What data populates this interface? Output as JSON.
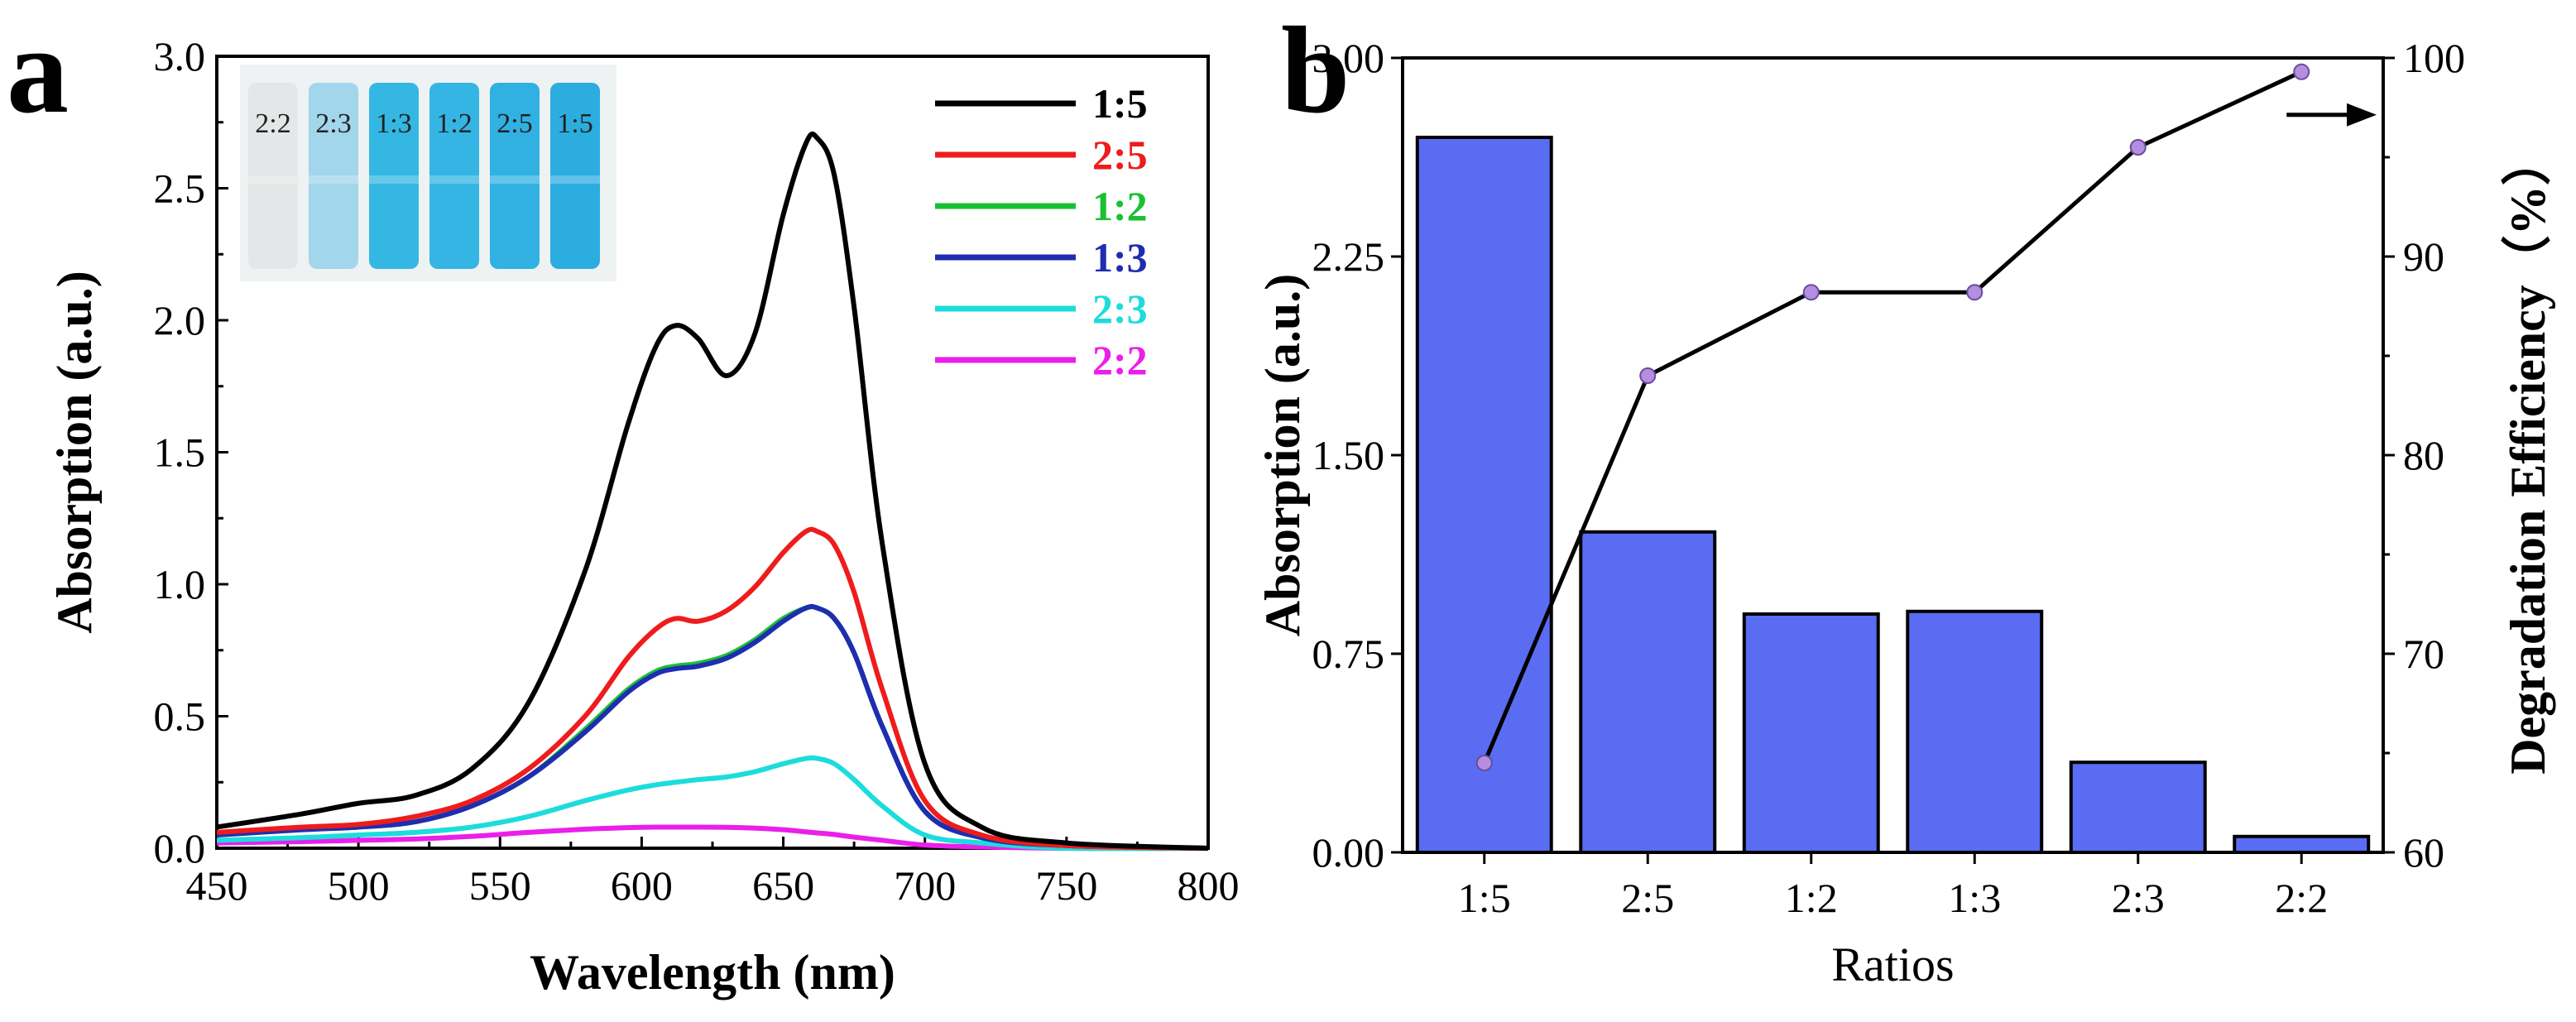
{
  "panel_labels": {
    "a": "a",
    "b": "b"
  },
  "colors": {
    "1:5": "#000000",
    "2:5": "#ee1c1c",
    "1:2": "#19c132",
    "1:3": "#1f2db0",
    "2:3": "#1cdcdc",
    "2:2": "#ea1fea",
    "bar_fill": "#5a6cf2",
    "dot_fill": "#b48ee0"
  },
  "chart_data": [
    {
      "type": "line",
      "panel": "a",
      "xlabel": "Wavelength (nm)",
      "ylabel": "Absorption (a.u.)",
      "xlim": [
        450,
        800
      ],
      "ylim": [
        0,
        3.0
      ],
      "x_ticks": [
        "450",
        "500",
        "550",
        "600",
        "650",
        "700",
        "750",
        "800"
      ],
      "y_ticks": [
        "0.0",
        "0.5",
        "1.0",
        "1.5",
        "2.0",
        "2.5",
        "3.0"
      ],
      "legend_position": "top-right",
      "inset": {
        "description_labels": [
          "2:2",
          "2:3",
          "1:3",
          "1:2",
          "2:5",
          "1:5"
        ]
      },
      "series": [
        {
          "name": "1:5",
          "x": [
            450,
            480,
            500,
            520,
            540,
            560,
            580,
            595,
            605,
            612,
            620,
            630,
            640,
            650,
            658,
            662,
            668,
            675,
            685,
            700,
            720,
            750,
            800
          ],
          "y": [
            0.08,
            0.13,
            0.17,
            0.2,
            0.3,
            0.55,
            1.05,
            1.6,
            1.9,
            1.98,
            1.93,
            1.79,
            1.95,
            2.4,
            2.67,
            2.69,
            2.55,
            2.05,
            1.15,
            0.32,
            0.08,
            0.02,
            0.0
          ]
        },
        {
          "name": "2:5",
          "x": [
            450,
            480,
            500,
            520,
            540,
            560,
            580,
            595,
            605,
            612,
            620,
            630,
            640,
            650,
            658,
            662,
            668,
            675,
            685,
            700,
            720,
            750,
            800
          ],
          "y": [
            0.06,
            0.08,
            0.09,
            0.12,
            0.18,
            0.3,
            0.5,
            0.72,
            0.83,
            0.87,
            0.86,
            0.9,
            0.99,
            1.12,
            1.2,
            1.2,
            1.15,
            0.97,
            0.6,
            0.18,
            0.05,
            0.01,
            0.0
          ]
        },
        {
          "name": "1:2",
          "x": [
            450,
            480,
            500,
            520,
            540,
            560,
            580,
            595,
            605,
            612,
            620,
            630,
            640,
            650,
            658,
            662,
            668,
            675,
            685,
            700,
            720,
            750,
            800
          ],
          "y": [
            0.05,
            0.07,
            0.08,
            0.1,
            0.16,
            0.27,
            0.45,
            0.6,
            0.67,
            0.69,
            0.7,
            0.73,
            0.79,
            0.87,
            0.91,
            0.91,
            0.87,
            0.74,
            0.46,
            0.14,
            0.04,
            0.01,
            0.0
          ]
        },
        {
          "name": "1:3",
          "x": [
            450,
            480,
            500,
            520,
            540,
            560,
            580,
            595,
            605,
            612,
            620,
            630,
            640,
            650,
            658,
            662,
            668,
            675,
            685,
            700,
            720,
            750,
            800
          ],
          "y": [
            0.05,
            0.07,
            0.08,
            0.1,
            0.16,
            0.27,
            0.44,
            0.59,
            0.66,
            0.68,
            0.69,
            0.72,
            0.78,
            0.86,
            0.91,
            0.91,
            0.87,
            0.74,
            0.46,
            0.14,
            0.04,
            0.01,
            0.0
          ]
        },
        {
          "name": "2:3",
          "x": [
            450,
            480,
            500,
            520,
            540,
            560,
            580,
            595,
            605,
            612,
            620,
            630,
            640,
            650,
            658,
            662,
            668,
            675,
            685,
            700,
            720,
            750,
            800
          ],
          "y": [
            0.03,
            0.04,
            0.05,
            0.06,
            0.08,
            0.12,
            0.18,
            0.22,
            0.24,
            0.25,
            0.26,
            0.27,
            0.29,
            0.32,
            0.34,
            0.34,
            0.32,
            0.26,
            0.16,
            0.05,
            0.02,
            0.0,
            0.0
          ]
        },
        {
          "name": "2:2",
          "x": [
            450,
            480,
            500,
            520,
            540,
            560,
            580,
            595,
            605,
            612,
            620,
            630,
            640,
            650,
            658,
            662,
            668,
            675,
            685,
            700,
            720,
            750,
            800
          ],
          "y": [
            0.02,
            0.025,
            0.03,
            0.035,
            0.045,
            0.06,
            0.072,
            0.078,
            0.08,
            0.08,
            0.08,
            0.079,
            0.076,
            0.07,
            0.062,
            0.058,
            0.052,
            0.042,
            0.03,
            0.012,
            0.005,
            0.0,
            0.0
          ]
        }
      ]
    },
    {
      "type": "bar",
      "panel": "b",
      "xlabel": "Ratios",
      "ylabel": "Absorption (a.u.)",
      "y2label": "Degradation Efficiency（%）",
      "categories": [
        "1:5",
        "2:5",
        "1:2",
        "1:3",
        "2:3",
        "2:2"
      ],
      "values": [
        2.7,
        1.21,
        0.9,
        0.91,
        0.34,
        0.06
      ],
      "ylim": [
        0,
        3.0
      ],
      "y_ticks": [
        "0.00",
        "0.75",
        "1.50",
        "2.25",
        "3.00"
      ],
      "y2lim": [
        60,
        100
      ],
      "y2_ticks": [
        "60",
        "70",
        "80",
        "90",
        "100"
      ],
      "line_series": {
        "axis": "right",
        "values": [
          64.5,
          84.0,
          88.2,
          88.2,
          95.5,
          99.3
        ]
      }
    }
  ]
}
